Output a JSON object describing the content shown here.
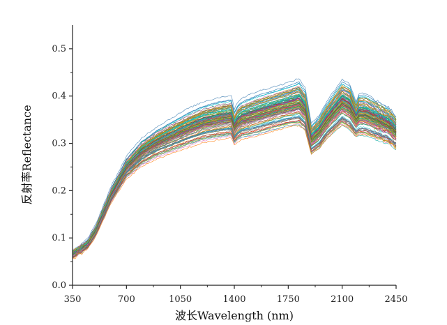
{
  "chart_data": {
    "type": "line",
    "title": "",
    "xlabel": "波长Wavelength (nm)",
    "ylabel": "反射率Reflectance",
    "xlim": [
      350,
      2450
    ],
    "ylim": [
      0.0,
      0.55
    ],
    "xticks": [
      350,
      700,
      1050,
      1400,
      1750,
      2100,
      2450
    ],
    "xtick_labels": [
      "350",
      "700",
      "1050",
      "1400",
      "1750",
      "2100",
      "2450"
    ],
    "yticks": [
      0.0,
      0.1,
      0.2,
      0.3,
      0.4,
      0.5
    ],
    "ytick_labels": [
      "0.0",
      "0.1",
      "0.2",
      "0.3",
      "0.4",
      "0.5"
    ],
    "grid": false,
    "legend": "none",
    "series_count": 120,
    "representative_spectrum": {
      "x": [
        350,
        400,
        450,
        500,
        550,
        600,
        700,
        800,
        900,
        1000,
        1100,
        1200,
        1300,
        1380,
        1400,
        1420,
        1450,
        1550,
        1650,
        1750,
        1820,
        1860,
        1900,
        1950,
        2000,
        2100,
        2150,
        2190,
        2210,
        2250,
        2300,
        2350,
        2400,
        2450
      ],
      "y": [
        0.065,
        0.075,
        0.09,
        0.115,
        0.15,
        0.19,
        0.245,
        0.28,
        0.295,
        0.31,
        0.322,
        0.332,
        0.34,
        0.342,
        0.31,
        0.33,
        0.34,
        0.35,
        0.358,
        0.365,
        0.368,
        0.35,
        0.29,
        0.305,
        0.33,
        0.37,
        0.36,
        0.325,
        0.345,
        0.345,
        0.34,
        0.33,
        0.32,
        0.31
      ]
    },
    "reflectance_range_min": [
      0.055,
      0.065,
      0.075,
      0.1,
      0.135,
      0.17,
      0.22,
      0.245,
      0.26,
      0.27,
      0.28,
      0.29,
      0.295,
      0.298,
      0.285,
      0.29,
      0.295,
      0.3,
      0.31,
      0.318,
      0.32,
      0.31,
      0.265,
      0.275,
      0.295,
      0.32,
      0.31,
      0.3,
      0.3,
      0.3,
      0.295,
      0.29,
      0.285,
      0.275
    ],
    "reflectance_range_max": [
      0.075,
      0.085,
      0.1,
      0.13,
      0.17,
      0.21,
      0.275,
      0.315,
      0.34,
      0.36,
      0.38,
      0.395,
      0.405,
      0.41,
      0.38,
      0.395,
      0.405,
      0.42,
      0.43,
      0.44,
      0.45,
      0.43,
      0.35,
      0.37,
      0.4,
      0.45,
      0.44,
      0.4,
      0.42,
      0.42,
      0.41,
      0.4,
      0.39,
      0.37
    ],
    "palette": [
      "#808080",
      "#d62728",
      "#2ca02c",
      "#1f77b4",
      "#17becf",
      "#9467bd",
      "#bcbd22",
      "#ff7f0e",
      "#8c564b",
      "#e377c2",
      "#6b8e23",
      "#4682b4",
      "#2e8b57",
      "#daa520",
      "#00ced1",
      "#c71585",
      "#556b2f",
      "#20b2aa",
      "#b8860b",
      "#708090"
    ]
  }
}
